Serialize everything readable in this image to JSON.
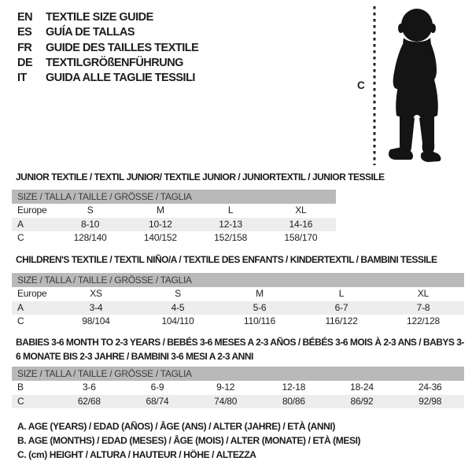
{
  "colors": {
    "background": "#ffffff",
    "header_bar_bg": "#b9b9b9",
    "header_bar_text": "#3c3c3c",
    "row_alt_bg": "#ededed",
    "text": "#1d1d1d",
    "silhouette": "#141414"
  },
  "language_header": {
    "items": [
      {
        "code": "EN",
        "label": "TEXTILE SIZE GUIDE"
      },
      {
        "code": "ES",
        "label": "GUÍA DE TALLAS"
      },
      {
        "code": "FR",
        "label": "GUIDE DES TAILLES TEXTILE"
      },
      {
        "code": "DE",
        "label": "TEXTILGRÖßENFÜHRUNG"
      },
      {
        "code": "IT",
        "label": "GUIDA ALLE TAGLIE TESSILI"
      }
    ]
  },
  "figure": {
    "icon": "baby-silhouette",
    "height_label": "C"
  },
  "tables": [
    {
      "title": "JUNIOR TEXTILE / TEXTIL JUNIOR/ TEXTILE JUNIOR / JUNIORTEXTIL / JUNIOR TESSILE",
      "size_header": "SIZE / TALLA / TAILLE / GRÖSSE / TAGLIA",
      "rows": [
        {
          "label": "Europe",
          "values": [
            "S",
            "M",
            "L",
            "XL"
          ]
        },
        {
          "label": "A",
          "values": [
            "8-10",
            "10-12",
            "12-13",
            "14-16"
          ]
        },
        {
          "label": "C",
          "values": [
            "128/140",
            "140/152",
            "152/158",
            "158/170"
          ]
        }
      ]
    },
    {
      "title": "CHILDREN'S TEXTILE / TEXTIL NIÑO/A / TEXTILE DES ENFANTS / KINDERTEXTIL / BAMBINI TESSILE",
      "size_header": "SIZE / TALLA / TAILLE / GRÖSSE / TAGLIA",
      "rows": [
        {
          "label": "Europe",
          "values": [
            "XS",
            "S",
            "M",
            "L",
            "XL"
          ]
        },
        {
          "label": "A",
          "values": [
            "3-4",
            "4-5",
            "5-6",
            "6-7",
            "7-8"
          ]
        },
        {
          "label": "C",
          "values": [
            "98/104",
            "104/110",
            "110/116",
            "116/122",
            "122/128"
          ]
        }
      ]
    },
    {
      "title": "BABIES 3-6 MONTH TO 2-3 YEARS / BEBÉS 3-6 MESES A 2-3 AÑOS / BÉBÉS 3-6 MOIS À 2-3 ANS / BABYS 3-6 MONATE BIS 2-3 JAHRE / BAMBINI 3-6 MESI A 2-3 ANNI",
      "size_header": "SIZE / TALLA / TAILLE / GRÖSSE / TAGLIA",
      "rows": [
        {
          "label": "B",
          "values": [
            "3-6",
            "6-9",
            "9-12",
            "12-18",
            "18-24",
            "24-36"
          ]
        },
        {
          "label": "C",
          "values": [
            "62/68",
            "68/74",
            "74/80",
            "80/86",
            "86/92",
            "92/98"
          ]
        }
      ]
    }
  ],
  "legend": {
    "items": [
      "A. AGE (YEARS) / EDAD (AÑOS) / ÂGE (ANS) / ALTER (JAHRE) / ETÀ (ANNI)",
      "B. AGE (MONTHS) / EDAD (MESES) / ÂGE (MOIS) / ALTER (MONATE) / ETÀ (MESI)",
      "C. (cm) HEIGHT / ALTURA / HAUTEUR / HÖHE / ALTEZZA"
    ]
  }
}
